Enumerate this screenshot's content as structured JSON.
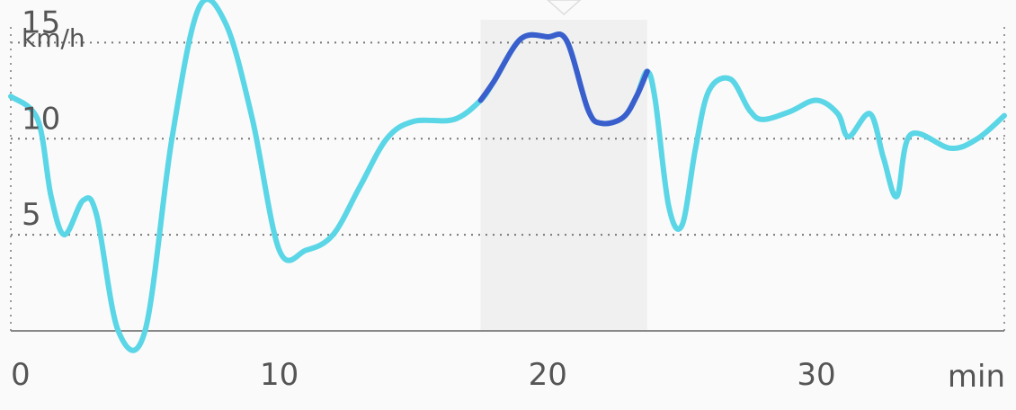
{
  "chart_data": {
    "type": "line",
    "ylabel": "km/h",
    "xlabel": "min",
    "xlim": [
      0,
      37
    ],
    "ylim": [
      0,
      16
    ],
    "y_ticks": [
      5,
      10,
      15
    ],
    "x_ticks": [
      0,
      10,
      20,
      30
    ],
    "y_tick_labels": [
      "5",
      "10",
      "15"
    ],
    "x_tick_labels": [
      "0",
      "10",
      "20",
      "30"
    ],
    "grid": "horizontal dotted",
    "highlight_range": [
      17.5,
      23.7
    ],
    "series": [
      {
        "color": "#5ad6e6",
        "highlight_color": "#3a5fcd",
        "points": [
          [
            0,
            12.2
          ],
          [
            1,
            11.0
          ],
          [
            1.5,
            7.0
          ],
          [
            2,
            5.0
          ],
          [
            2.7,
            6.8
          ],
          [
            3.2,
            6.0
          ],
          [
            4,
            0.0
          ],
          [
            5,
            0.0
          ],
          [
            6,
            10.0
          ],
          [
            7,
            16.8
          ],
          [
            8,
            16.0
          ],
          [
            9,
            11.0
          ],
          [
            10,
            4.2
          ],
          [
            11,
            4.2
          ],
          [
            12,
            5.0
          ],
          [
            13,
            7.5
          ],
          [
            14,
            10.0
          ],
          [
            15,
            10.9
          ],
          [
            16.5,
            11.0
          ],
          [
            17.5,
            12.0
          ],
          [
            18,
            13.0
          ],
          [
            19,
            15.2
          ],
          [
            20,
            15.3
          ],
          [
            20.7,
            15.1
          ],
          [
            21.5,
            11.5
          ],
          [
            22,
            10.8
          ],
          [
            22.8,
            11.1
          ],
          [
            23.3,
            12.2
          ],
          [
            23.7,
            13.5
          ],
          [
            24,
            12.0
          ],
          [
            24.5,
            6.5
          ],
          [
            25,
            5.5
          ],
          [
            25.5,
            9.5
          ],
          [
            26,
            12.5
          ],
          [
            26.8,
            13.1
          ],
          [
            27.5,
            11.5
          ],
          [
            28,
            11.0
          ],
          [
            29,
            11.4
          ],
          [
            30,
            12.0
          ],
          [
            30.8,
            11.3
          ],
          [
            31.2,
            10.1
          ],
          [
            32,
            11.3
          ],
          [
            32.5,
            9.0
          ],
          [
            33,
            7.0
          ],
          [
            33.5,
            10.2
          ],
          [
            35,
            9.5
          ],
          [
            36,
            10.0
          ],
          [
            37,
            11.2
          ]
        ]
      }
    ]
  }
}
